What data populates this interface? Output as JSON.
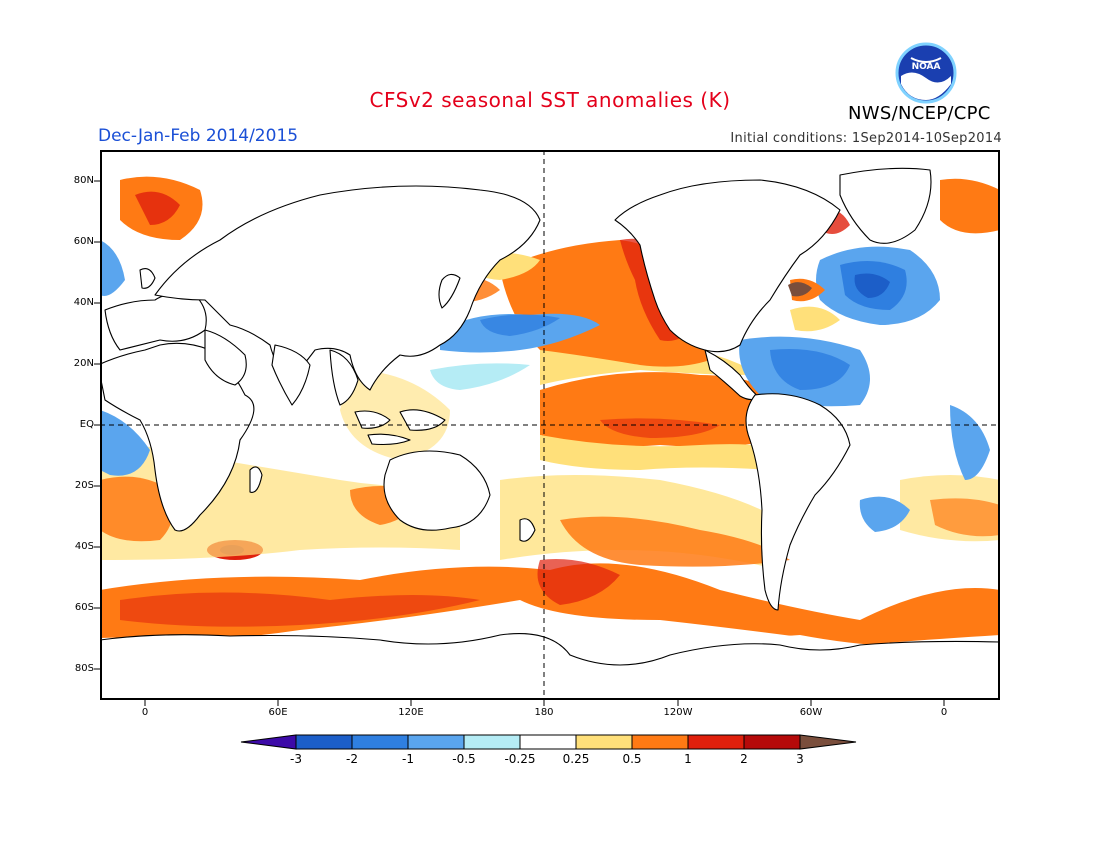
{
  "header": {
    "title": "CFSv2 seasonal SST anomalies (K)",
    "season": "Dec-Jan-Feb 2014/2015",
    "initial_conditions": "Initial conditions: 1Sep2014-10Sep2014",
    "agency": "NWS/NCEP/CPC",
    "logo_text": "NOAA"
  },
  "axes": {
    "lat_labels": [
      "80N",
      "60N",
      "40N",
      "20N",
      "EQ",
      "20S",
      "40S",
      "60S",
      "80S"
    ],
    "lon_labels": [
      "0",
      "60E",
      "120E",
      "180",
      "120W",
      "60W",
      "0"
    ],
    "reference_lines": [
      "EQ",
      "180"
    ]
  },
  "colorbar": {
    "labels": [
      "-3",
      "-2",
      "-1",
      "-0.5",
      "-0.25",
      "0.25",
      "0.5",
      "1",
      "2",
      "3"
    ],
    "colors": [
      "#3d0aa8",
      "#1c5ec8",
      "#2f7fe0",
      "#5aa5ee",
      "#b5ecf5",
      "#ffffff",
      "#ffe07a",
      "#ff7a14",
      "#e0200c",
      "#b50a0a",
      "#7a4e3c"
    ]
  },
  "map": {
    "land_color": "#ffffff",
    "coastline_color": "#000000"
  }
}
